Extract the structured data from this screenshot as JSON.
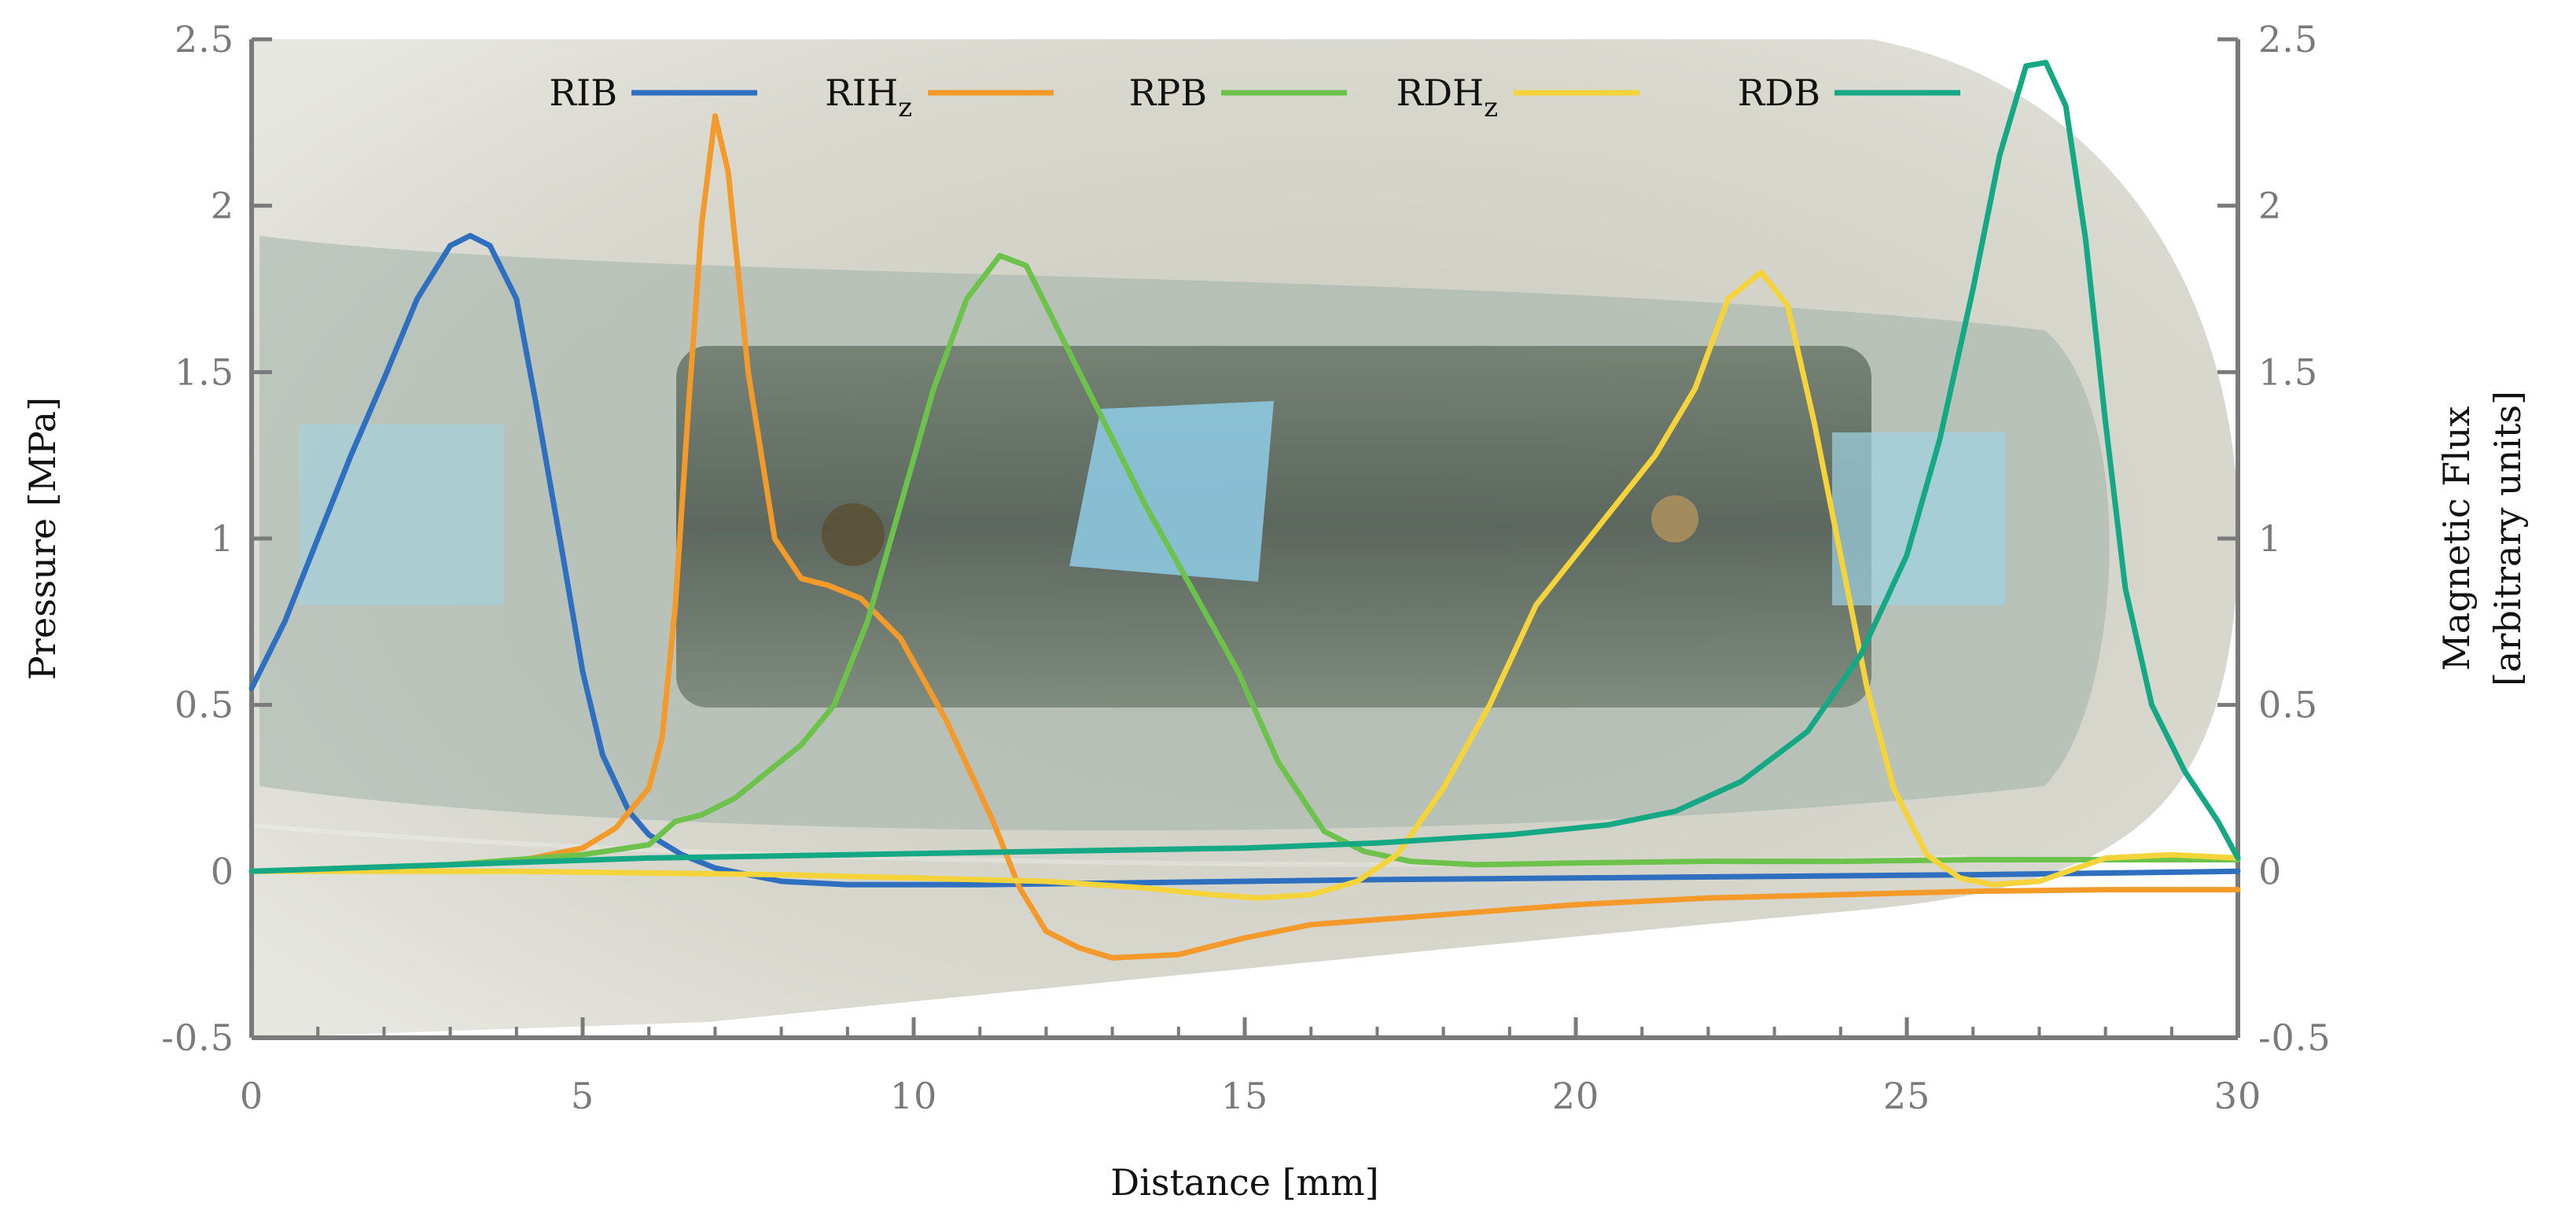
{
  "chart_data": {
    "type": "line",
    "xlabel": "Distance [mm]",
    "ylabel": "Pressure [MPa]",
    "y2label_lines": [
      "Magnetic Flux",
      "[arbitrary units]"
    ],
    "xlim": [
      0,
      30
    ],
    "ylim": [
      -0.5,
      2.5
    ],
    "y2lim": [
      -0.5,
      2.5
    ],
    "x_ticks": [
      "0",
      "5",
      "10",
      "15",
      "20",
      "25",
      "30"
    ],
    "y_ticks": [
      "-0.5",
      "0",
      "0.5",
      "1",
      "1.5",
      "2",
      "2.5"
    ],
    "y2_ticks": [
      "-0.5",
      "0",
      "0.5",
      "1",
      "1.5",
      "2",
      "2.5"
    ],
    "grid": false,
    "background": "photograph of a translucent silicone fingertip with embedded circuit board",
    "legend": {
      "placement": "top",
      "entries": [
        {
          "label": "RIB",
          "sub": "",
          "color": "#2f6fc0"
        },
        {
          "label": "RIH",
          "sub": "z",
          "color": "#f39a2b"
        },
        {
          "label": "RPB",
          "sub": "",
          "color": "#6cc24a"
        },
        {
          "label": "RDH",
          "sub": "z",
          "color": "#f5d33a"
        },
        {
          "label": "RDB",
          "sub": "",
          "color": "#14a884"
        }
      ]
    },
    "series": [
      {
        "name": "RIB",
        "color": "#2f6fc0",
        "points": [
          [
            0,
            0.55
          ],
          [
            0.5,
            0.75
          ],
          [
            1,
            1.0
          ],
          [
            1.5,
            1.25
          ],
          [
            2,
            1.48
          ],
          [
            2.5,
            1.72
          ],
          [
            3,
            1.88
          ],
          [
            3.3,
            1.91
          ],
          [
            3.6,
            1.88
          ],
          [
            4,
            1.72
          ],
          [
            4.3,
            1.4
          ],
          [
            4.7,
            0.95
          ],
          [
            5,
            0.6
          ],
          [
            5.3,
            0.35
          ],
          [
            5.7,
            0.18
          ],
          [
            6,
            0.11
          ],
          [
            6.5,
            0.05
          ],
          [
            7,
            0.01
          ],
          [
            7.5,
            -0.01
          ],
          [
            8,
            -0.03
          ],
          [
            9,
            -0.04
          ],
          [
            11,
            -0.04
          ],
          [
            13,
            -0.035
          ],
          [
            15,
            -0.03
          ],
          [
            17,
            -0.025
          ],
          [
            20,
            -0.02
          ],
          [
            23,
            -0.015
          ],
          [
            26,
            -0.01
          ],
          [
            28,
            -0.005
          ],
          [
            30,
            0.0
          ]
        ]
      },
      {
        "name": "RIH_z",
        "color": "#f39a2b",
        "points": [
          [
            0,
            0.0
          ],
          [
            2,
            0.01
          ],
          [
            3,
            0.02
          ],
          [
            4,
            0.03
          ],
          [
            5,
            0.07
          ],
          [
            5.5,
            0.13
          ],
          [
            6,
            0.25
          ],
          [
            6.2,
            0.4
          ],
          [
            6.4,
            0.8
          ],
          [
            6.6,
            1.4
          ],
          [
            6.8,
            1.95
          ],
          [
            7.0,
            2.27
          ],
          [
            7.2,
            2.1
          ],
          [
            7.5,
            1.5
          ],
          [
            7.9,
            1.0
          ],
          [
            8.3,
            0.88
          ],
          [
            8.7,
            0.86
          ],
          [
            9.2,
            0.82
          ],
          [
            9.8,
            0.7
          ],
          [
            10.5,
            0.45
          ],
          [
            11.2,
            0.15
          ],
          [
            11.6,
            -0.05
          ],
          [
            12,
            -0.18
          ],
          [
            12.5,
            -0.23
          ],
          [
            13,
            -0.26
          ],
          [
            14,
            -0.25
          ],
          [
            15,
            -0.2
          ],
          [
            16,
            -0.16
          ],
          [
            18,
            -0.13
          ],
          [
            20,
            -0.1
          ],
          [
            22,
            -0.08
          ],
          [
            24,
            -0.07
          ],
          [
            26,
            -0.06
          ],
          [
            28,
            -0.055
          ],
          [
            30,
            -0.055
          ]
        ]
      },
      {
        "name": "RPB",
        "color": "#6cc24a",
        "points": [
          [
            0,
            0.0
          ],
          [
            3,
            0.02
          ],
          [
            5,
            0.05
          ],
          [
            6,
            0.08
          ],
          [
            6.4,
            0.15
          ],
          [
            6.8,
            0.17
          ],
          [
            7.3,
            0.22
          ],
          [
            7.8,
            0.3
          ],
          [
            8.3,
            0.38
          ],
          [
            8.8,
            0.5
          ],
          [
            9.3,
            0.75
          ],
          [
            9.8,
            1.1
          ],
          [
            10.3,
            1.45
          ],
          [
            10.8,
            1.72
          ],
          [
            11.3,
            1.85
          ],
          [
            11.7,
            1.82
          ],
          [
            12.2,
            1.62
          ],
          [
            12.8,
            1.38
          ],
          [
            13.5,
            1.1
          ],
          [
            14.2,
            0.85
          ],
          [
            14.9,
            0.6
          ],
          [
            15.5,
            0.33
          ],
          [
            16.2,
            0.12
          ],
          [
            16.8,
            0.06
          ],
          [
            17.5,
            0.03
          ],
          [
            18.5,
            0.02
          ],
          [
            20,
            0.025
          ],
          [
            22,
            0.03
          ],
          [
            24,
            0.03
          ],
          [
            26,
            0.035
          ],
          [
            28,
            0.035
          ],
          [
            30,
            0.035
          ]
        ]
      },
      {
        "name": "RDH_z",
        "color": "#f5d33a",
        "points": [
          [
            0,
            0.0
          ],
          [
            4,
            0.0
          ],
          [
            8,
            -0.01
          ],
          [
            10,
            -0.02
          ],
          [
            12,
            -0.03
          ],
          [
            13.5,
            -0.05
          ],
          [
            14.5,
            -0.07
          ],
          [
            15.2,
            -0.08
          ],
          [
            16,
            -0.07
          ],
          [
            16.7,
            -0.03
          ],
          [
            17.3,
            0.05
          ],
          [
            18,
            0.25
          ],
          [
            18.7,
            0.5
          ],
          [
            19.4,
            0.8
          ],
          [
            20,
            0.95
          ],
          [
            20.6,
            1.1
          ],
          [
            21.2,
            1.25
          ],
          [
            21.8,
            1.45
          ],
          [
            22.3,
            1.72
          ],
          [
            22.8,
            1.8
          ],
          [
            23.2,
            1.7
          ],
          [
            23.6,
            1.35
          ],
          [
            24,
            0.95
          ],
          [
            24.4,
            0.55
          ],
          [
            24.8,
            0.25
          ],
          [
            25.3,
            0.05
          ],
          [
            25.8,
            -0.02
          ],
          [
            26.3,
            -0.04
          ],
          [
            27,
            -0.03
          ],
          [
            28,
            0.04
          ],
          [
            29,
            0.05
          ],
          [
            30,
            0.04
          ]
        ]
      },
      {
        "name": "RDB",
        "color": "#14a884",
        "points": [
          [
            0,
            0.0
          ],
          [
            3,
            0.02
          ],
          [
            6,
            0.04
          ],
          [
            9,
            0.05
          ],
          [
            12,
            0.06
          ],
          [
            15,
            0.07
          ],
          [
            17,
            0.085
          ],
          [
            19,
            0.11
          ],
          [
            20.5,
            0.14
          ],
          [
            21.5,
            0.18
          ],
          [
            22.5,
            0.27
          ],
          [
            23.5,
            0.42
          ],
          [
            24.3,
            0.65
          ],
          [
            25,
            0.95
          ],
          [
            25.5,
            1.3
          ],
          [
            26,
            1.75
          ],
          [
            26.4,
            2.15
          ],
          [
            26.8,
            2.42
          ],
          [
            27.1,
            2.43
          ],
          [
            27.4,
            2.3
          ],
          [
            27.7,
            1.9
          ],
          [
            28,
            1.35
          ],
          [
            28.3,
            0.85
          ],
          [
            28.7,
            0.5
          ],
          [
            29.2,
            0.3
          ],
          [
            29.7,
            0.15
          ],
          [
            30,
            0.04
          ]
        ]
      }
    ]
  }
}
